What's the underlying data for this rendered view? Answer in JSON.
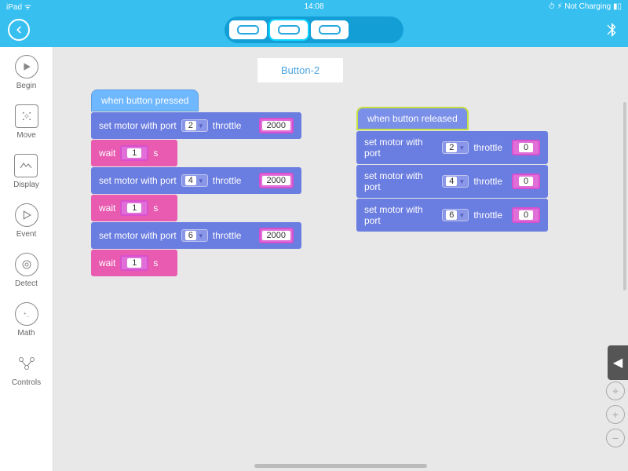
{
  "statusbar": {
    "left": "iPad ᯤ",
    "time": "14:08",
    "right": "⏱ ⚡︎ Not Charging ▮▯"
  },
  "palette": {
    "begin": "Begin",
    "move": "Move",
    "display": "Display",
    "event": "Event",
    "detect": "Detect",
    "math": "Math",
    "controls": "Controls"
  },
  "button_tab": "Button-2",
  "stack1": {
    "hat": "when button pressed",
    "blocks": [
      {
        "t": "motor",
        "pre": "set motor with port",
        "port": "2",
        "mid": "throttle",
        "val": "2000"
      },
      {
        "t": "wait",
        "pre": "wait",
        "val": "1",
        "suf": "s"
      },
      {
        "t": "motor",
        "pre": "set motor with port",
        "port": "4",
        "mid": "throttle",
        "val": "2000"
      },
      {
        "t": "wait",
        "pre": "wait",
        "val": "1",
        "suf": "s"
      },
      {
        "t": "motor",
        "pre": "set motor with port",
        "port": "6",
        "mid": "throttle",
        "val": "2000"
      },
      {
        "t": "wait",
        "pre": "wait",
        "val": "1",
        "suf": "s"
      }
    ]
  },
  "stack2": {
    "hat": "when button released",
    "blocks": [
      {
        "t": "motor",
        "pre": "set motor with port",
        "port": "2",
        "mid": "throttle",
        "val": "0"
      },
      {
        "t": "motor",
        "pre": "set motor with port",
        "port": "4",
        "mid": "throttle",
        "val": "0"
      },
      {
        "t": "motor",
        "pre": "set motor with port",
        "port": "6",
        "mid": "throttle",
        "val": "0"
      }
    ]
  },
  "colors": {
    "topbar": "#37bff0",
    "pill": "#139fd6",
    "hat1": "#6fb8ff",
    "hat2": "#7a8fe8",
    "motor": "#6a7de0",
    "wait": "#e85bb0",
    "canvas": "#e8e8e8"
  }
}
